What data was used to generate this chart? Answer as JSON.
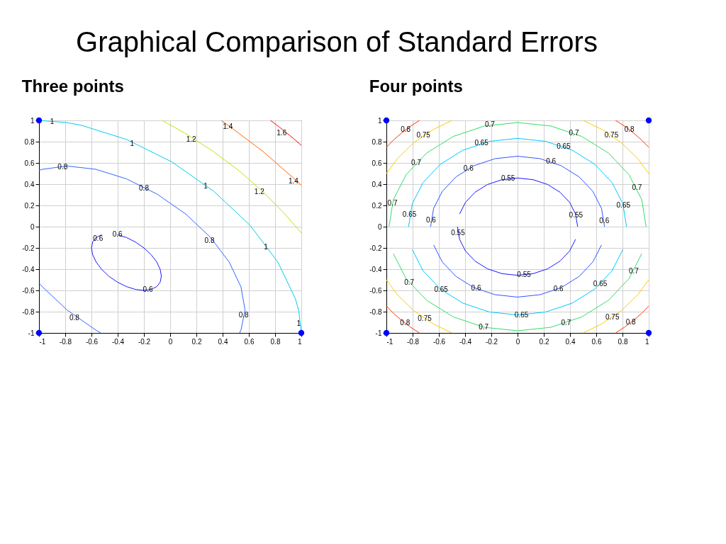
{
  "chart_data": [
    {
      "type": "line",
      "title": "Graphical Comparison of Standard Errors",
      "subtitle": "Three points",
      "xlim": [
        -1,
        1
      ],
      "ylim": [
        -1,
        1
      ],
      "xticks": [
        -1,
        -0.8,
        -0.6,
        -0.4,
        -0.2,
        0,
        0.2,
        0.4,
        0.6,
        0.8,
        1
      ],
      "yticks": [
        -1,
        -0.8,
        -0.6,
        -0.4,
        -0.2,
        0,
        0.2,
        0.4,
        0.6,
        0.8,
        1
      ],
      "grid": true,
      "series": [
        {
          "color": "#1a1aff",
          "x": [
            -0.402,
            -0.333,
            -0.264,
            -0.2,
            -0.145,
            -0.102,
            -0.076,
            -0.067,
            -0.076,
            -0.102,
            -0.145,
            -0.2,
            -0.264,
            -0.333,
            -0.402,
            -0.467,
            -0.522,
            -0.564,
            -0.591,
            -0.6,
            -0.591,
            -0.564,
            -0.522
          ],
          "values": [
            -0.076,
            -0.102,
            -0.145,
            -0.2,
            -0.264,
            -0.333,
            -0.402,
            -0.467,
            -0.522,
            -0.564,
            -0.591,
            -0.6,
            -0.591,
            -0.564,
            -0.522,
            -0.467,
            -0.402,
            -0.333,
            -0.264,
            -0.2,
            -0.145,
            -0.102,
            -0.076
          ]
        },
        {
          "color": "#3366ff",
          "x": [
            -1,
            -0.973,
            -0.785,
            -0.567,
            -0.333,
            -0.099,
            0.119,
            0.306,
            0.45,
            0.54,
            0.571,
            0.54,
            0.53
          ],
          "values": [
            0.53,
            0.54,
            0.571,
            0.54,
            0.45,
            0.306,
            0.119,
            -0.099,
            -0.333,
            -0.567,
            -0.785,
            -0.973,
            -1
          ]
        },
        {
          "color": "#3366ff",
          "x": [
            -1,
            -0.973,
            -0.785,
            -0.567,
            -0.53
          ],
          "values": [
            -0.53,
            -0.567,
            -0.785,
            -0.973,
            -1
          ]
        },
        {
          "color": "#00ccee",
          "x": [
            -1,
            -0.789,
            -0.679,
            -0.333,
            0.012,
            0.333,
            0.61,
            0.821,
            0.955,
            0.98,
            1
          ],
          "values": [
            1,
            0.98,
            0.955,
            0.821,
            0.61,
            0.333,
            0.012,
            -0.333,
            -0.679,
            -0.789,
            -1
          ]
        },
        {
          "color": "#c8e000",
          "x": [
            -0.06,
            0.111,
            0.324,
            0.526,
            0.712,
            0.881,
            1
          ],
          "values": [
            1,
            0.881,
            0.712,
            0.526,
            0.324,
            0.111,
            -0.06
          ]
        },
        {
          "color": "#ff6600",
          "x": [
            0.39,
            0.464,
            0.708,
            0.934,
            1
          ],
          "values": [
            1,
            0.934,
            0.708,
            0.464,
            0.39
          ]
        },
        {
          "color": "#ff0000",
          "x": [
            0.765,
            0.83,
            0.885,
            0.94,
            1
          ],
          "values": [
            1,
            0.94,
            0.885,
            0.83,
            0.765
          ]
        },
        {
          "type": "scatter",
          "color": "#0000ff",
          "x": [
            -1,
            -1,
            1
          ],
          "values": [
            1,
            -1,
            -1
          ]
        }
      ],
      "annotations": [
        {
          "text": "1",
          "x": -0.9,
          "y": 0.99
        },
        {
          "text": "1.4",
          "x": 0.44,
          "y": 0.94
        },
        {
          "text": "1.6",
          "x": 0.85,
          "y": 0.88
        },
        {
          "text": "1",
          "x": -0.29,
          "y": 0.78
        },
        {
          "text": "1.2",
          "x": 0.16,
          "y": 0.82
        },
        {
          "text": "0.8",
          "x": -0.82,
          "y": 0.56
        },
        {
          "text": "1.4",
          "x": 0.94,
          "y": 0.43
        },
        {
          "text": "0.8",
          "x": -0.2,
          "y": 0.36
        },
        {
          "text": "1",
          "x": 0.27,
          "y": 0.38
        },
        {
          "text": "1.2",
          "x": 0.68,
          "y": 0.33
        },
        {
          "text": "0.6",
          "x": -0.55,
          "y": -0.11
        },
        {
          "text": "0.6",
          "x": -0.402,
          "y": -0.076
        },
        {
          "text": "0.8",
          "x": 0.3,
          "y": -0.13
        },
        {
          "text": "1",
          "x": 0.73,
          "y": -0.19
        },
        {
          "text": "0.6",
          "x": -0.17,
          "y": -0.595
        },
        {
          "text": "0.8",
          "x": -0.73,
          "y": -0.86
        },
        {
          "text": "0.8",
          "x": 0.56,
          "y": -0.83
        },
        {
          "text": "1",
          "x": 0.98,
          "y": -0.91
        }
      ]
    },
    {
      "type": "line",
      "subtitle": "Four points",
      "xlim": [
        -1,
        1
      ],
      "ylim": [
        -1,
        1
      ],
      "xticks": [
        -1,
        -0.8,
        -0.6,
        -0.4,
        -0.2,
        0,
        0.2,
        0.4,
        0.6,
        0.8,
        1
      ],
      "yticks": [
        -1,
        -0.8,
        -0.6,
        -0.4,
        -0.2,
        0,
        0.2,
        0.4,
        0.6,
        0.8,
        1
      ],
      "grid": true,
      "series": [
        {
          "color": "#1a1aff",
          "x": [
            0.458,
            0.442,
            0.397,
            0.324,
            0.229,
            0.119,
            0,
            -0.119,
            -0.229,
            -0.324,
            -0.397,
            -0.442
          ],
          "values": [
            0,
            0.119,
            0.229,
            0.324,
            0.397,
            0.442,
            0.458,
            0.442,
            0.397,
            0.324,
            0.229,
            0.119
          ]
        },
        {
          "color": "#1a1aff",
          "x": [
            -0.458,
            -0.442,
            -0.397,
            -0.324,
            -0.229,
            -0.119,
            0,
            0.119,
            0.229,
            0.324,
            0.397,
            0.442
          ],
          "values": [
            0,
            -0.119,
            -0.229,
            -0.324,
            -0.397,
            -0.442,
            -0.458,
            -0.442,
            -0.397,
            -0.324,
            -0.229,
            -0.119
          ]
        },
        {
          "color": "#3355ff",
          "x": [
            0.663,
            0.64,
            0.574,
            0.469,
            0.332,
            0.172,
            0,
            -0.172,
            -0.332,
            -0.469,
            -0.574,
            -0.64,
            -0.663
          ],
          "values": [
            0,
            0.172,
            0.332,
            0.469,
            0.574,
            0.64,
            0.663,
            0.64,
            0.574,
            0.469,
            0.332,
            0.172,
            0
          ]
        },
        {
          "color": "#3355ff",
          "x": [
            -0.64,
            -0.574,
            -0.469,
            -0.332,
            -0.172,
            0,
            0.172,
            0.332,
            0.469,
            0.574,
            0.64
          ],
          "values": [
            -0.172,
            -0.332,
            -0.469,
            -0.574,
            -0.64,
            -0.663,
            -0.64,
            -0.574,
            -0.469,
            -0.332,
            -0.172
          ]
        },
        {
          "color": "#00c8ff",
          "x": [
            0.831,
            0.803,
            0.72,
            0.588,
            0.416,
            0.215,
            0,
            -0.215,
            -0.416,
            -0.588,
            -0.72,
            -0.803,
            -0.831
          ],
          "values": [
            0,
            0.215,
            0.416,
            0.588,
            0.72,
            0.803,
            0.831,
            0.803,
            0.72,
            0.588,
            0.416,
            0.215,
            0
          ]
        },
        {
          "color": "#00c8ff",
          "x": [
            -0.803,
            -0.72,
            -0.588,
            -0.416,
            -0.215,
            0,
            0.215,
            0.416,
            0.588,
            0.72,
            0.803
          ],
          "values": [
            -0.215,
            -0.416,
            -0.588,
            -0.72,
            -0.803,
            -0.831,
            -0.803,
            -0.72,
            -0.588,
            -0.416,
            -0.215
          ]
        },
        {
          "color": "#33dd66",
          "x": [
            0.98,
            0.947,
            0.849,
            0.693,
            0.49,
            0.254,
            0,
            -0.254,
            -0.49,
            -0.693,
            -0.849,
            -0.947,
            -0.98
          ],
          "values": [
            0,
            0.254,
            0.49,
            0.693,
            0.849,
            0.947,
            0.98,
            0.947,
            0.849,
            0.693,
            0.49,
            0.254,
            0
          ]
        },
        {
          "color": "#33dd66",
          "x": [
            -0.947,
            -0.849,
            -0.693,
            -0.49,
            -0.254,
            0,
            0.254,
            0.49,
            0.693,
            0.849,
            0.947
          ],
          "values": [
            -0.254,
            -0.49,
            -0.693,
            -0.849,
            -0.947,
            -0.98,
            -0.947,
            -0.849,
            -0.693,
            -0.49,
            -0.254
          ]
        },
        {
          "color": "#ffcc00",
          "x": [
            1,
            0.916,
            0.791,
            0.641,
            0.5
          ],
          "values": [
            0.5,
            0.641,
            0.791,
            0.916,
            1
          ]
        },
        {
          "color": "#ffcc00",
          "x": [
            -1,
            -0.916,
            -0.791,
            -0.641,
            -0.5
          ],
          "values": [
            0.5,
            0.641,
            0.791,
            0.916,
            1
          ]
        },
        {
          "color": "#ffcc00",
          "x": [
            -1,
            -0.916,
            -0.791,
            -0.641,
            -0.5
          ],
          "values": [
            -0.5,
            -0.641,
            -0.791,
            -0.916,
            -1
          ]
        },
        {
          "color": "#ffcc00",
          "x": [
            1,
            0.916,
            0.791,
            0.641,
            0.5
          ],
          "values": [
            -0.5,
            -0.641,
            -0.791,
            -0.916,
            -1
          ]
        },
        {
          "color": "#ff3300",
          "x": [
            1,
            0.944,
            0.883,
            0.818,
            0.748
          ],
          "values": [
            0.748,
            0.818,
            0.883,
            0.944,
            1
          ]
        },
        {
          "color": "#ff3300",
          "x": [
            -1,
            -0.944,
            -0.883,
            -0.818,
            -0.748
          ],
          "values": [
            0.748,
            0.818,
            0.883,
            0.944,
            1
          ]
        },
        {
          "color": "#ff3300",
          "x": [
            -1,
            -0.944,
            -0.883,
            -0.818,
            -0.748
          ],
          "values": [
            -0.748,
            -0.818,
            -0.883,
            -0.944,
            -1
          ]
        },
        {
          "color": "#ff3300",
          "x": [
            1,
            0.944,
            0.883,
            0.818,
            0.748
          ],
          "values": [
            -0.748,
            -0.818,
            -0.883,
            -0.944,
            -1
          ]
        },
        {
          "type": "scatter",
          "color": "#0000ff",
          "x": [
            -1,
            1,
            -1,
            1
          ],
          "values": [
            1,
            1,
            -1,
            -1
          ]
        }
      ],
      "annotations": [
        {
          "text": "0.8",
          "x": -0.853,
          "y": 0.913
        },
        {
          "text": "0.75",
          "x": -0.718,
          "y": 0.857
        },
        {
          "text": "0.7",
          "x": -0.211,
          "y": 0.957
        },
        {
          "text": "0.7",
          "x": 0.43,
          "y": 0.881
        },
        {
          "text": "0.75",
          "x": 0.716,
          "y": 0.859
        },
        {
          "text": "0.8",
          "x": 0.852,
          "y": 0.913
        },
        {
          "text": "0.65",
          "x": -0.275,
          "y": 0.784
        },
        {
          "text": "0.65",
          "x": 0.351,
          "y": 0.754
        },
        {
          "text": "0.7",
          "x": -0.773,
          "y": 0.602
        },
        {
          "text": "0.6",
          "x": -0.374,
          "y": 0.547
        },
        {
          "text": "0.6",
          "x": 0.255,
          "y": 0.612
        },
        {
          "text": "0.55",
          "x": -0.072,
          "y": 0.452
        },
        {
          "text": "0.7",
          "x": 0.91,
          "y": 0.364
        },
        {
          "text": "0.7",
          "x": -0.954,
          "y": 0.223
        },
        {
          "text": "0.65",
          "x": -0.824,
          "y": 0.111
        },
        {
          "text": "0.6",
          "x": -0.66,
          "y": 0.061
        },
        {
          "text": "0.55",
          "x": -0.454,
          "y": -0.059
        },
        {
          "text": "0.55",
          "x": 0.445,
          "y": 0.106
        },
        {
          "text": "0.6",
          "x": 0.661,
          "y": 0.052
        },
        {
          "text": "0.65",
          "x": 0.807,
          "y": 0.197
        },
        {
          "text": "0.7",
          "x": 0.886,
          "y": -0.418
        },
        {
          "text": "0.55",
          "x": 0.049,
          "y": -0.455
        },
        {
          "text": "0.7",
          "x": -0.826,
          "y": -0.527
        },
        {
          "text": "0.65",
          "x": -0.583,
          "y": -0.593
        },
        {
          "text": "0.6",
          "x": -0.316,
          "y": -0.583
        },
        {
          "text": "0.6",
          "x": 0.312,
          "y": -0.585
        },
        {
          "text": "0.65",
          "x": 0.63,
          "y": -0.54
        },
        {
          "text": "0.65",
          "x": 0.03,
          "y": -0.831
        },
        {
          "text": "0.8",
          "x": -0.858,
          "y": -0.908
        },
        {
          "text": "0.75",
          "x": -0.708,
          "y": -0.865
        },
        {
          "text": "0.7",
          "x": -0.259,
          "y": -0.945
        },
        {
          "text": "0.7",
          "x": 0.37,
          "y": -0.908
        },
        {
          "text": "0.75",
          "x": 0.723,
          "y": -0.853
        },
        {
          "text": "0.8",
          "x": 0.863,
          "y": -0.903
        }
      ]
    }
  ]
}
